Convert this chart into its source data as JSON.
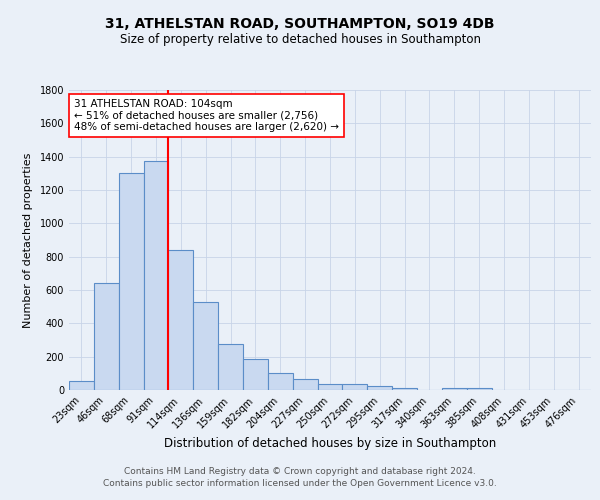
{
  "title1": "31, ATHELSTAN ROAD, SOUTHAMPTON, SO19 4DB",
  "title2": "Size of property relative to detached houses in Southampton",
  "xlabel": "Distribution of detached houses by size in Southampton",
  "ylabel": "Number of detached properties",
  "categories": [
    "23sqm",
    "46sqm",
    "68sqm",
    "91sqm",
    "114sqm",
    "136sqm",
    "159sqm",
    "182sqm",
    "204sqm",
    "227sqm",
    "250sqm",
    "272sqm",
    "295sqm",
    "317sqm",
    "340sqm",
    "363sqm",
    "385sqm",
    "408sqm",
    "431sqm",
    "453sqm",
    "476sqm"
  ],
  "values": [
    55,
    645,
    1305,
    1375,
    840,
    530,
    275,
    185,
    103,
    65,
    37,
    35,
    22,
    12,
    2,
    10,
    12,
    0,
    0,
    0,
    0
  ],
  "bar_color": "#c9d9f0",
  "bar_edge_color": "#5b8dc8",
  "vline_color": "red",
  "vline_x_idx": 3.5,
  "annotation_text": "31 ATHELSTAN ROAD: 104sqm\n← 51% of detached houses are smaller (2,756)\n48% of semi-detached houses are larger (2,620) →",
  "annotation_box_color": "white",
  "annotation_box_edge_color": "red",
  "ylim": [
    0,
    1800
  ],
  "yticks": [
    0,
    200,
    400,
    600,
    800,
    1000,
    1200,
    1400,
    1600,
    1800
  ],
  "grid_color": "#c8d4e8",
  "bg_color": "#eaf0f8",
  "footnote1": "Contains HM Land Registry data © Crown copyright and database right 2024.",
  "footnote2": "Contains public sector information licensed under the Open Government Licence v3.0.",
  "title1_fontsize": 10,
  "title2_fontsize": 8.5,
  "xlabel_fontsize": 8.5,
  "ylabel_fontsize": 8,
  "tick_fontsize": 7,
  "footnote_fontsize": 6.5,
  "annot_fontsize": 7.5
}
